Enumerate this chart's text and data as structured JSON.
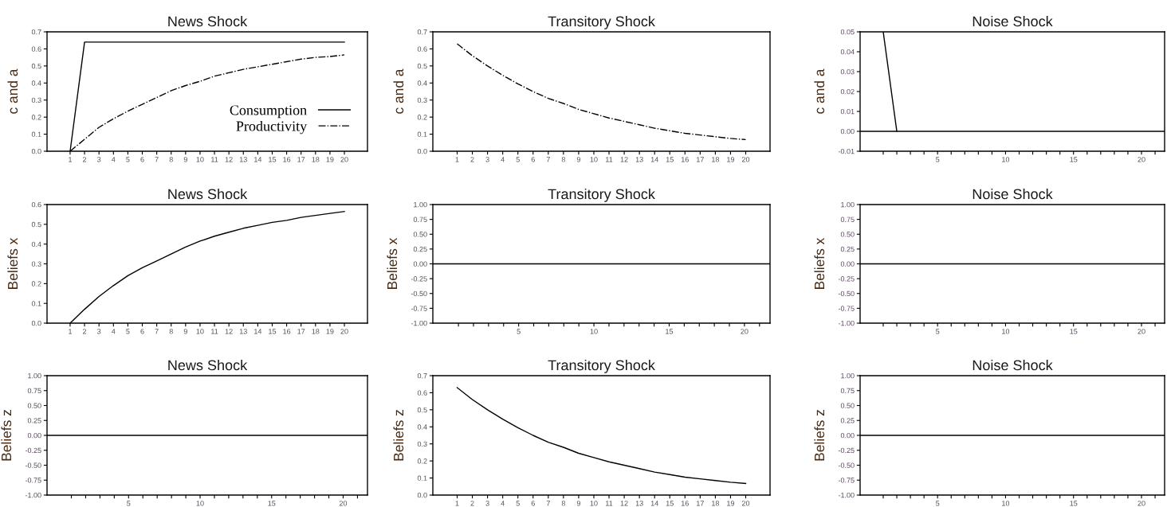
{
  "chart_data": [
    {
      "type": "line",
      "title": "News Shock",
      "ylabel": "c and a",
      "categories": [
        "1",
        "2",
        "3",
        "4",
        "5",
        "6",
        "7",
        "8",
        "9",
        "10",
        "11",
        "12",
        "13",
        "14",
        "15",
        "16",
        "17",
        "18",
        "19",
        "20"
      ],
      "ylim": [
        0,
        0.7
      ],
      "yticks": [
        {
          "value": 0,
          "label": "0.0"
        },
        0.1,
        0.2,
        0.3,
        0.4,
        0.5,
        0.6,
        0.7
      ],
      "legend": "bottom right",
      "series": [
        {
          "name": "Consumption",
          "color": "#000000",
          "line_style": "solid",
          "values": [
            0,
            0.64,
            0.64,
            0.64,
            0.64,
            0.64,
            0.64,
            0.64,
            0.64,
            0.64,
            0.64,
            0.64,
            0.64,
            0.64,
            0.64,
            0.64,
            0.64,
            0.64,
            0.64,
            0.64
          ]
        },
        {
          "name": "Productivity",
          "color": "#000000",
          "line_style": "dashdot",
          "values": [
            0,
            0.07,
            0.14,
            0.19,
            0.235,
            0.275,
            0.315,
            0.355,
            0.385,
            0.41,
            0.44,
            0.46,
            0.48,
            0.495,
            0.51,
            0.525,
            0.54,
            0.55,
            0.555,
            0.565
          ]
        }
      ]
    },
    {
      "type": "line",
      "title": "Transitory Shock",
      "ylabel": "c and a",
      "categories": [
        "1",
        "2",
        "3",
        "4",
        "5",
        "6",
        "7",
        "8",
        "9",
        "10",
        "11",
        "12",
        "13",
        "14",
        "15",
        "16",
        "17",
        "18",
        "19",
        "20"
      ],
      "ylim": [
        0,
        0.7
      ],
      "yticks": [
        {
          "value": 0,
          "label": "0.0"
        },
        0.1,
        0.2,
        0.3,
        0.4,
        0.5,
        0.6,
        0.7
      ],
      "series": [
        {
          "color": "#000000",
          "line_style": "dashdot",
          "values": [
            0.63,
            0.56,
            0.5,
            0.445,
            0.395,
            0.35,
            0.31,
            0.28,
            0.245,
            0.22,
            0.195,
            0.175,
            0.155,
            0.135,
            0.12,
            0.105,
            0.095,
            0.085,
            0.075,
            0.068
          ]
        }
      ]
    },
    {
      "type": "line",
      "title": "Noise Shock",
      "ylabel": "c and a",
      "xlim": [
        -0.7,
        21.7
      ],
      "xticks": [
        {
          "value": 1,
          "label": null
        },
        {
          "value": 2,
          "label": null
        },
        {
          "value": 3,
          "label": null
        },
        {
          "value": 4,
          "label": null
        },
        5,
        {
          "value": 6,
          "label": null
        },
        {
          "value": 7,
          "label": null
        },
        {
          "value": 8,
          "label": null
        },
        {
          "value": 9,
          "label": null
        },
        10,
        {
          "value": 11,
          "label": null
        },
        {
          "value": 12,
          "label": null
        },
        {
          "value": 13,
          "label": null
        },
        {
          "value": 14,
          "label": null
        },
        15,
        {
          "value": 16,
          "label": null
        },
        {
          "value": 17,
          "label": null
        },
        {
          "value": 18,
          "label": null
        },
        {
          "value": 19,
          "label": null
        },
        20,
        {
          "value": 21,
          "label": null
        }
      ],
      "ylim": [
        -0.01,
        0.05
      ],
      "yticks": [
        {
          "value": -0.01,
          "label": "-0.01"
        },
        {
          "value": 0,
          "label": "0.00"
        },
        {
          "value": 0.01,
          "label": "0.01"
        },
        {
          "value": 0.02,
          "label": "0.02"
        },
        {
          "value": 0.03,
          "label": "0.03"
        },
        {
          "value": 0.04,
          "label": "0.04"
        },
        {
          "value": 0.05,
          "label": "0.05"
        }
      ],
      "ref_lines": [
        {
          "axis": "y",
          "value": 0,
          "color": "#000000"
        }
      ],
      "series": [
        {
          "color": "#000000",
          "line_style": "solid",
          "x": [
            1,
            2
          ],
          "values": [
            0.05,
            0
          ]
        }
      ]
    },
    {
      "type": "line",
      "title": "News Shock",
      "ylabel": "Beliefs x",
      "categories": [
        "1",
        "2",
        "3",
        "4",
        "5",
        "6",
        "7",
        "8",
        "9",
        "10",
        "11",
        "12",
        "13",
        "14",
        "15",
        "16",
        "17",
        "18",
        "19",
        "20"
      ],
      "ylim": [
        0,
        0.6
      ],
      "yticks": [
        {
          "value": 0,
          "label": "0.0"
        },
        0.1,
        0.2,
        0.3,
        0.4,
        0.5,
        0.6
      ],
      "series": [
        {
          "color": "#000000",
          "line_style": "solid",
          "values": [
            0,
            0.07,
            0.135,
            0.19,
            0.24,
            0.28,
            0.315,
            0.35,
            0.385,
            0.415,
            0.44,
            0.46,
            0.48,
            0.495,
            0.51,
            0.52,
            0.535,
            0.545,
            0.555,
            0.565
          ]
        }
      ]
    },
    {
      "type": "line",
      "title": "Transitory Shock",
      "ylabel": "Beliefs x",
      "xlim": [
        -0.7,
        21.7
      ],
      "xticks": [
        {
          "value": 1,
          "label": null
        },
        {
          "value": 2,
          "label": null
        },
        {
          "value": 3,
          "label": null
        },
        {
          "value": 4,
          "label": null
        },
        5,
        {
          "value": 6,
          "label": null
        },
        {
          "value": 7,
          "label": null
        },
        {
          "value": 8,
          "label": null
        },
        {
          "value": 9,
          "label": null
        },
        10,
        {
          "value": 11,
          "label": null
        },
        {
          "value": 12,
          "label": null
        },
        {
          "value": 13,
          "label": null
        },
        {
          "value": 14,
          "label": null
        },
        15,
        {
          "value": 16,
          "label": null
        },
        {
          "value": 17,
          "label": null
        },
        {
          "value": 18,
          "label": null
        },
        {
          "value": 19,
          "label": null
        },
        20,
        {
          "value": 21,
          "label": null
        }
      ],
      "ylim": [
        -1,
        1
      ],
      "yticks": [
        {
          "value": -1,
          "label": "-1.00"
        },
        {
          "value": -0.75,
          "label": "-0.75"
        },
        {
          "value": -0.5,
          "label": "-0.50"
        },
        {
          "value": -0.25,
          "label": "-0.25"
        },
        {
          "value": 0,
          "label": "0.00"
        },
        {
          "value": 0.25,
          "label": "0.25"
        },
        {
          "value": 0.5,
          "label": "0.50"
        },
        {
          "value": 0.75,
          "label": "0.75"
        },
        {
          "value": 1,
          "label": "1.00"
        }
      ],
      "ref_lines": [
        {
          "axis": "y",
          "value": 0,
          "color": "#000000"
        }
      ]
    },
    {
      "type": "line",
      "title": "Noise Shock",
      "ylabel": "Beliefs x",
      "xlim": [
        -0.7,
        21.7
      ],
      "xticks": [
        {
          "value": 1,
          "label": null
        },
        {
          "value": 2,
          "label": null
        },
        {
          "value": 3,
          "label": null
        },
        {
          "value": 4,
          "label": null
        },
        5,
        {
          "value": 6,
          "label": null
        },
        {
          "value": 7,
          "label": null
        },
        {
          "value": 8,
          "label": null
        },
        {
          "value": 9,
          "label": null
        },
        10,
        {
          "value": 11,
          "label": null
        },
        {
          "value": 12,
          "label": null
        },
        {
          "value": 13,
          "label": null
        },
        {
          "value": 14,
          "label": null
        },
        15,
        {
          "value": 16,
          "label": null
        },
        {
          "value": 17,
          "label": null
        },
        {
          "value": 18,
          "label": null
        },
        {
          "value": 19,
          "label": null
        },
        20,
        {
          "value": 21,
          "label": null
        }
      ],
      "ylim": [
        -1,
        1
      ],
      "yticks": [
        {
          "value": -1,
          "label": "-1.00"
        },
        {
          "value": -0.75,
          "label": "-0.75"
        },
        {
          "value": -0.5,
          "label": "-0.50"
        },
        {
          "value": -0.25,
          "label": "-0.25"
        },
        {
          "value": 0,
          "label": "0.00"
        },
        {
          "value": 0.25,
          "label": "0.25"
        },
        {
          "value": 0.5,
          "label": "0.50"
        },
        {
          "value": 0.75,
          "label": "0.75"
        },
        {
          "value": 1,
          "label": "1.00"
        }
      ],
      "ref_lines": [
        {
          "axis": "y",
          "value": 0,
          "color": "#000000"
        }
      ]
    },
    {
      "type": "line",
      "title": "News Shock",
      "ylabel": "Beliefs z",
      "xlim": [
        -0.7,
        21.7
      ],
      "xticks": [
        {
          "value": 1,
          "label": null
        },
        {
          "value": 2,
          "label": null
        },
        {
          "value": 3,
          "label": null
        },
        {
          "value": 4,
          "label": null
        },
        5,
        {
          "value": 6,
          "label": null
        },
        {
          "value": 7,
          "label": null
        },
        {
          "value": 8,
          "label": null
        },
        {
          "value": 9,
          "label": null
        },
        10,
        {
          "value": 11,
          "label": null
        },
        {
          "value": 12,
          "label": null
        },
        {
          "value": 13,
          "label": null
        },
        {
          "value": 14,
          "label": null
        },
        15,
        {
          "value": 16,
          "label": null
        },
        {
          "value": 17,
          "label": null
        },
        {
          "value": 18,
          "label": null
        },
        {
          "value": 19,
          "label": null
        },
        20,
        {
          "value": 21,
          "label": null
        }
      ],
      "ylim": [
        -1,
        1
      ],
      "yticks": [
        {
          "value": -1,
          "label": "-1.00"
        },
        {
          "value": -0.75,
          "label": "-0.75"
        },
        {
          "value": -0.5,
          "label": "-0.50"
        },
        {
          "value": -0.25,
          "label": "-0.25"
        },
        {
          "value": 0,
          "label": "0.00"
        },
        {
          "value": 0.25,
          "label": "0.25"
        },
        {
          "value": 0.5,
          "label": "0.50"
        },
        {
          "value": 0.75,
          "label": "0.75"
        },
        {
          "value": 1,
          "label": "1.00"
        }
      ],
      "ref_lines": [
        {
          "axis": "y",
          "value": 0,
          "color": "#000000"
        }
      ]
    },
    {
      "type": "line",
      "title": "Transitory Shock",
      "ylabel": "Beliefs z",
      "categories": [
        "1",
        "2",
        "3",
        "4",
        "5",
        "6",
        "7",
        "8",
        "9",
        "10",
        "11",
        "12",
        "13",
        "14",
        "15",
        "16",
        "17",
        "18",
        "19",
        "20"
      ],
      "ylim": [
        0,
        0.7
      ],
      "yticks": [
        {
          "value": 0,
          "label": "0.0"
        },
        0.1,
        0.2,
        0.3,
        0.4,
        0.5,
        0.6,
        0.7
      ],
      "series": [
        {
          "color": "#000000",
          "line_style": "solid",
          "values": [
            0.63,
            0.56,
            0.5,
            0.445,
            0.395,
            0.35,
            0.31,
            0.28,
            0.245,
            0.22,
            0.195,
            0.175,
            0.155,
            0.135,
            0.12,
            0.105,
            0.095,
            0.085,
            0.075,
            0.068
          ]
        }
      ]
    },
    {
      "type": "line",
      "title": "Noise Shock",
      "ylabel": "Beliefs z",
      "xlim": [
        -0.7,
        21.7
      ],
      "xticks": [
        {
          "value": 1,
          "label": null
        },
        {
          "value": 2,
          "label": null
        },
        {
          "value": 3,
          "label": null
        },
        {
          "value": 4,
          "label": null
        },
        5,
        {
          "value": 6,
          "label": null
        },
        {
          "value": 7,
          "label": null
        },
        {
          "value": 8,
          "label": null
        },
        {
          "value": 9,
          "label": null
        },
        10,
        {
          "value": 11,
          "label": null
        },
        {
          "value": 12,
          "label": null
        },
        {
          "value": 13,
          "label": null
        },
        {
          "value": 14,
          "label": null
        },
        15,
        {
          "value": 16,
          "label": null
        },
        {
          "value": 17,
          "label": null
        },
        {
          "value": 18,
          "label": null
        },
        {
          "value": 19,
          "label": null
        },
        20,
        {
          "value": 21,
          "label": null
        }
      ],
      "ylim": [
        -1,
        1
      ],
      "yticks": [
        {
          "value": -1,
          "label": "-1.00"
        },
        {
          "value": -0.75,
          "label": "-0.75"
        },
        {
          "value": -0.5,
          "label": "-0.50"
        },
        {
          "value": -0.25,
          "label": "-0.25"
        },
        {
          "value": 0,
          "label": "0.00"
        },
        {
          "value": 0.25,
          "label": "0.25"
        },
        {
          "value": 0.5,
          "label": "0.50"
        },
        {
          "value": 0.75,
          "label": "0.75"
        },
        {
          "value": 1,
          "label": "1.00"
        }
      ],
      "ref_lines": [
        {
          "axis": "y",
          "value": 0,
          "color": "#000000"
        }
      ]
    }
  ]
}
